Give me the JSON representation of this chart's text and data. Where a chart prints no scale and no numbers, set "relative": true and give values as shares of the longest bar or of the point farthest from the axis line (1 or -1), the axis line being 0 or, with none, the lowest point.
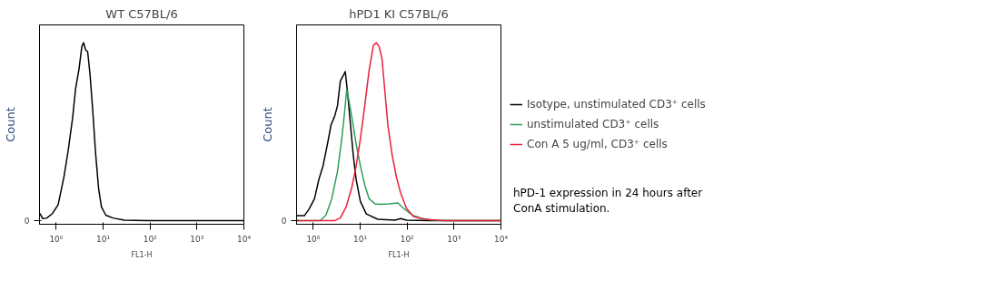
{
  "chart_data": [
    {
      "type": "line",
      "title": "WT C57BL/6",
      "xlabel": "FL1-H",
      "ylabel": "Count",
      "relative": true,
      "log": "x",
      "xlim": [
        0.44,
        10000
      ],
      "xticks": [
        {
          "value": 1,
          "label": "10⁰"
        },
        {
          "value": 10,
          "label": "10¹"
        },
        {
          "value": 100,
          "label": "10²"
        },
        {
          "value": 1000,
          "label": "10³"
        },
        {
          "value": 10000,
          "label": "10⁴"
        }
      ],
      "annotations": [
        "0"
      ],
      "grid": false,
      "legend": false,
      "series": [
        {
          "color": "#000000",
          "x": [
            0.45,
            0.51,
            0.63,
            0.83,
            1.1,
            1.47,
            1.81,
            2.24,
            2.58,
            3.05,
            3.52,
            3.83,
            4.23,
            4.67,
            5.22,
            6.0,
            6.9,
            8.0,
            9.2,
            11.4,
            16.2,
            28.4,
            88,
            10000
          ],
          "values": [
            0.04,
            0.012,
            0.015,
            0.04,
            0.09,
            0.25,
            0.4,
            0.58,
            0.74,
            0.85,
            0.98,
            1.0,
            0.96,
            0.95,
            0.83,
            0.62,
            0.38,
            0.18,
            0.077,
            0.031,
            0.015,
            0.003,
            0,
            0
          ]
        }
      ]
    },
    {
      "type": "line",
      "title": "hPD1 KI C57BL/6",
      "xlabel": "FL1-H",
      "ylabel": "Count",
      "relative": true,
      "log": "x",
      "xlim": [
        0.44,
        10000
      ],
      "xticks": [
        {
          "value": 1,
          "label": "10⁰"
        },
        {
          "value": 10,
          "label": "10¹"
        },
        {
          "value": 100,
          "label": "10²"
        },
        {
          "value": 1000,
          "label": "10³"
        },
        {
          "value": 10000,
          "label": "10⁴"
        }
      ],
      "grid": false,
      "legend": "right",
      "annotations": [
        "0",
        "hPD-1 expression in 24 hours after ConA stimulation."
      ],
      "series": [
        {
          "name": "Isotype, unstimulated CD3⁺ cells",
          "color": "#000000",
          "x": [
            0.44,
            0.645,
            0.8,
            1.06,
            1.31,
            1.62,
            2.0,
            2.4,
            2.84,
            3.28,
            3.77,
            4.35,
            4.8,
            5.37,
            6.2,
            7.1,
            8.2,
            10.1,
            13.5,
            23.7,
            55,
            73,
            97,
            301,
            10000
          ],
          "values": [
            0.028,
            0.028,
            0.062,
            0.123,
            0.23,
            0.31,
            0.43,
            0.54,
            0.585,
            0.646,
            0.785,
            0.815,
            0.838,
            0.72,
            0.54,
            0.37,
            0.23,
            0.108,
            0.038,
            0.008,
            0.003,
            0.012,
            0.003,
            0,
            0
          ]
        },
        {
          "name": "unstimulated CD3⁺ cells",
          "color": "#2e9e5a",
          "x": [
            0.44,
            1.4,
            1.86,
            2.47,
            3.28,
            4.05,
            4.67,
            5.15,
            5.6,
            6.6,
            8.2,
            10.1,
            12.5,
            15.5,
            20.6,
            27.3,
            41.7,
            63.6,
            84,
            129,
            197,
            301,
            610,
            10000
          ],
          "values": [
            0,
            0,
            0.031,
            0.123,
            0.277,
            0.46,
            0.615,
            0.738,
            0.692,
            0.585,
            0.43,
            0.308,
            0.2,
            0.123,
            0.095,
            0.092,
            0.095,
            0.1,
            0.069,
            0.031,
            0.015,
            0.006,
            0,
            0
          ]
        },
        {
          "name": "Con A 5 ug/ml, CD3⁺ cells",
          "color": "#e8203a",
          "x": [
            0.44,
            2.84,
            3.77,
            5.0,
            6.6,
            8.2,
            10.1,
            12.5,
            15.5,
            19.1,
            22.1,
            25.4,
            29.2,
            33.7,
            38.8,
            48,
            59,
            73,
            97,
            138,
            227,
            610,
            10000
          ],
          "values": [
            0,
            0,
            0.015,
            0.077,
            0.185,
            0.308,
            0.46,
            0.646,
            0.846,
            0.985,
            1.0,
            0.977,
            0.908,
            0.723,
            0.538,
            0.369,
            0.246,
            0.154,
            0.069,
            0.023,
            0.008,
            0,
            0
          ]
        }
      ]
    }
  ]
}
